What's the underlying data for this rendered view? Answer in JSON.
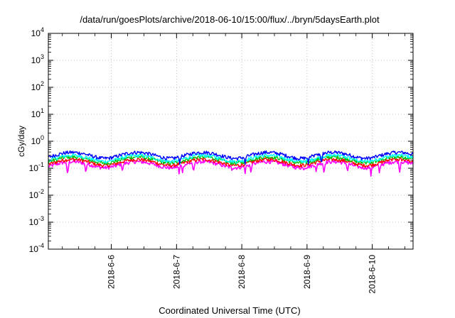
{
  "chart_data": {
    "type": "line",
    "title": "/data/run/goesPlots/archive/2018-06-10/15:00/flux/../bryn/5daysEarth.plot",
    "xlabel": "Coordinated Universal Time (UTC)",
    "ylabel": "cGy/day",
    "yscale": "log",
    "ylim": [
      0.0001,
      10000
    ],
    "xlim": [
      "2018-06-05 00:50",
      "2018-06-10 15:00"
    ],
    "grid": true,
    "y_ticks": [
      {
        "base": "10",
        "exp": "-4"
      },
      {
        "base": "10",
        "exp": "-3"
      },
      {
        "base": "10",
        "exp": "-2"
      },
      {
        "base": "10",
        "exp": "-1"
      },
      {
        "base": "10",
        "exp": "0"
      },
      {
        "base": "10",
        "exp": "1"
      },
      {
        "base": "10",
        "exp": "2"
      },
      {
        "base": "10",
        "exp": "3"
      },
      {
        "base": "10",
        "exp": "4"
      }
    ],
    "x_ticks": [
      "2018-6-6",
      "2018-6-7",
      "2018-6-8",
      "2018-6-9",
      "2018-6-10"
    ],
    "x_tick_days": [
      1,
      2,
      3,
      4,
      5
    ],
    "x_range_days": [
      0.035,
      5.625
    ],
    "series": [
      {
        "color": "#ff00ff",
        "base": 0.14,
        "lows": [
          [
            0.33,
            0.05
          ],
          [
            0.61,
            0.06
          ],
          [
            1.17,
            0.07
          ],
          [
            2.04,
            0.055
          ],
          [
            2.09,
            0.06
          ],
          [
            2.26,
            0.07
          ],
          [
            2.85,
            0.07
          ],
          [
            3.05,
            0.06
          ],
          [
            3.14,
            0.06
          ],
          [
            3.95,
            0.07
          ],
          [
            4.14,
            0.07
          ],
          [
            4.26,
            0.06
          ],
          [
            4.62,
            0.07
          ],
          [
            4.98,
            0.045
          ],
          [
            5.11,
            0.06
          ],
          [
            5.42,
            0.07
          ]
        ]
      },
      {
        "color": "#ff0000",
        "base": 0.17,
        "lows": []
      },
      {
        "color": "#00c000",
        "base": 0.21,
        "lows": []
      },
      {
        "color": "#00ffff",
        "base": 0.24,
        "lows": []
      },
      {
        "color": "#0000ff",
        "base": 0.31,
        "lows": [
          [
            2.05,
            0.13
          ],
          [
            3.05,
            0.13
          ],
          [
            4.02,
            0.14
          ],
          [
            4.22,
            0.13
          ]
        ]
      }
    ]
  }
}
